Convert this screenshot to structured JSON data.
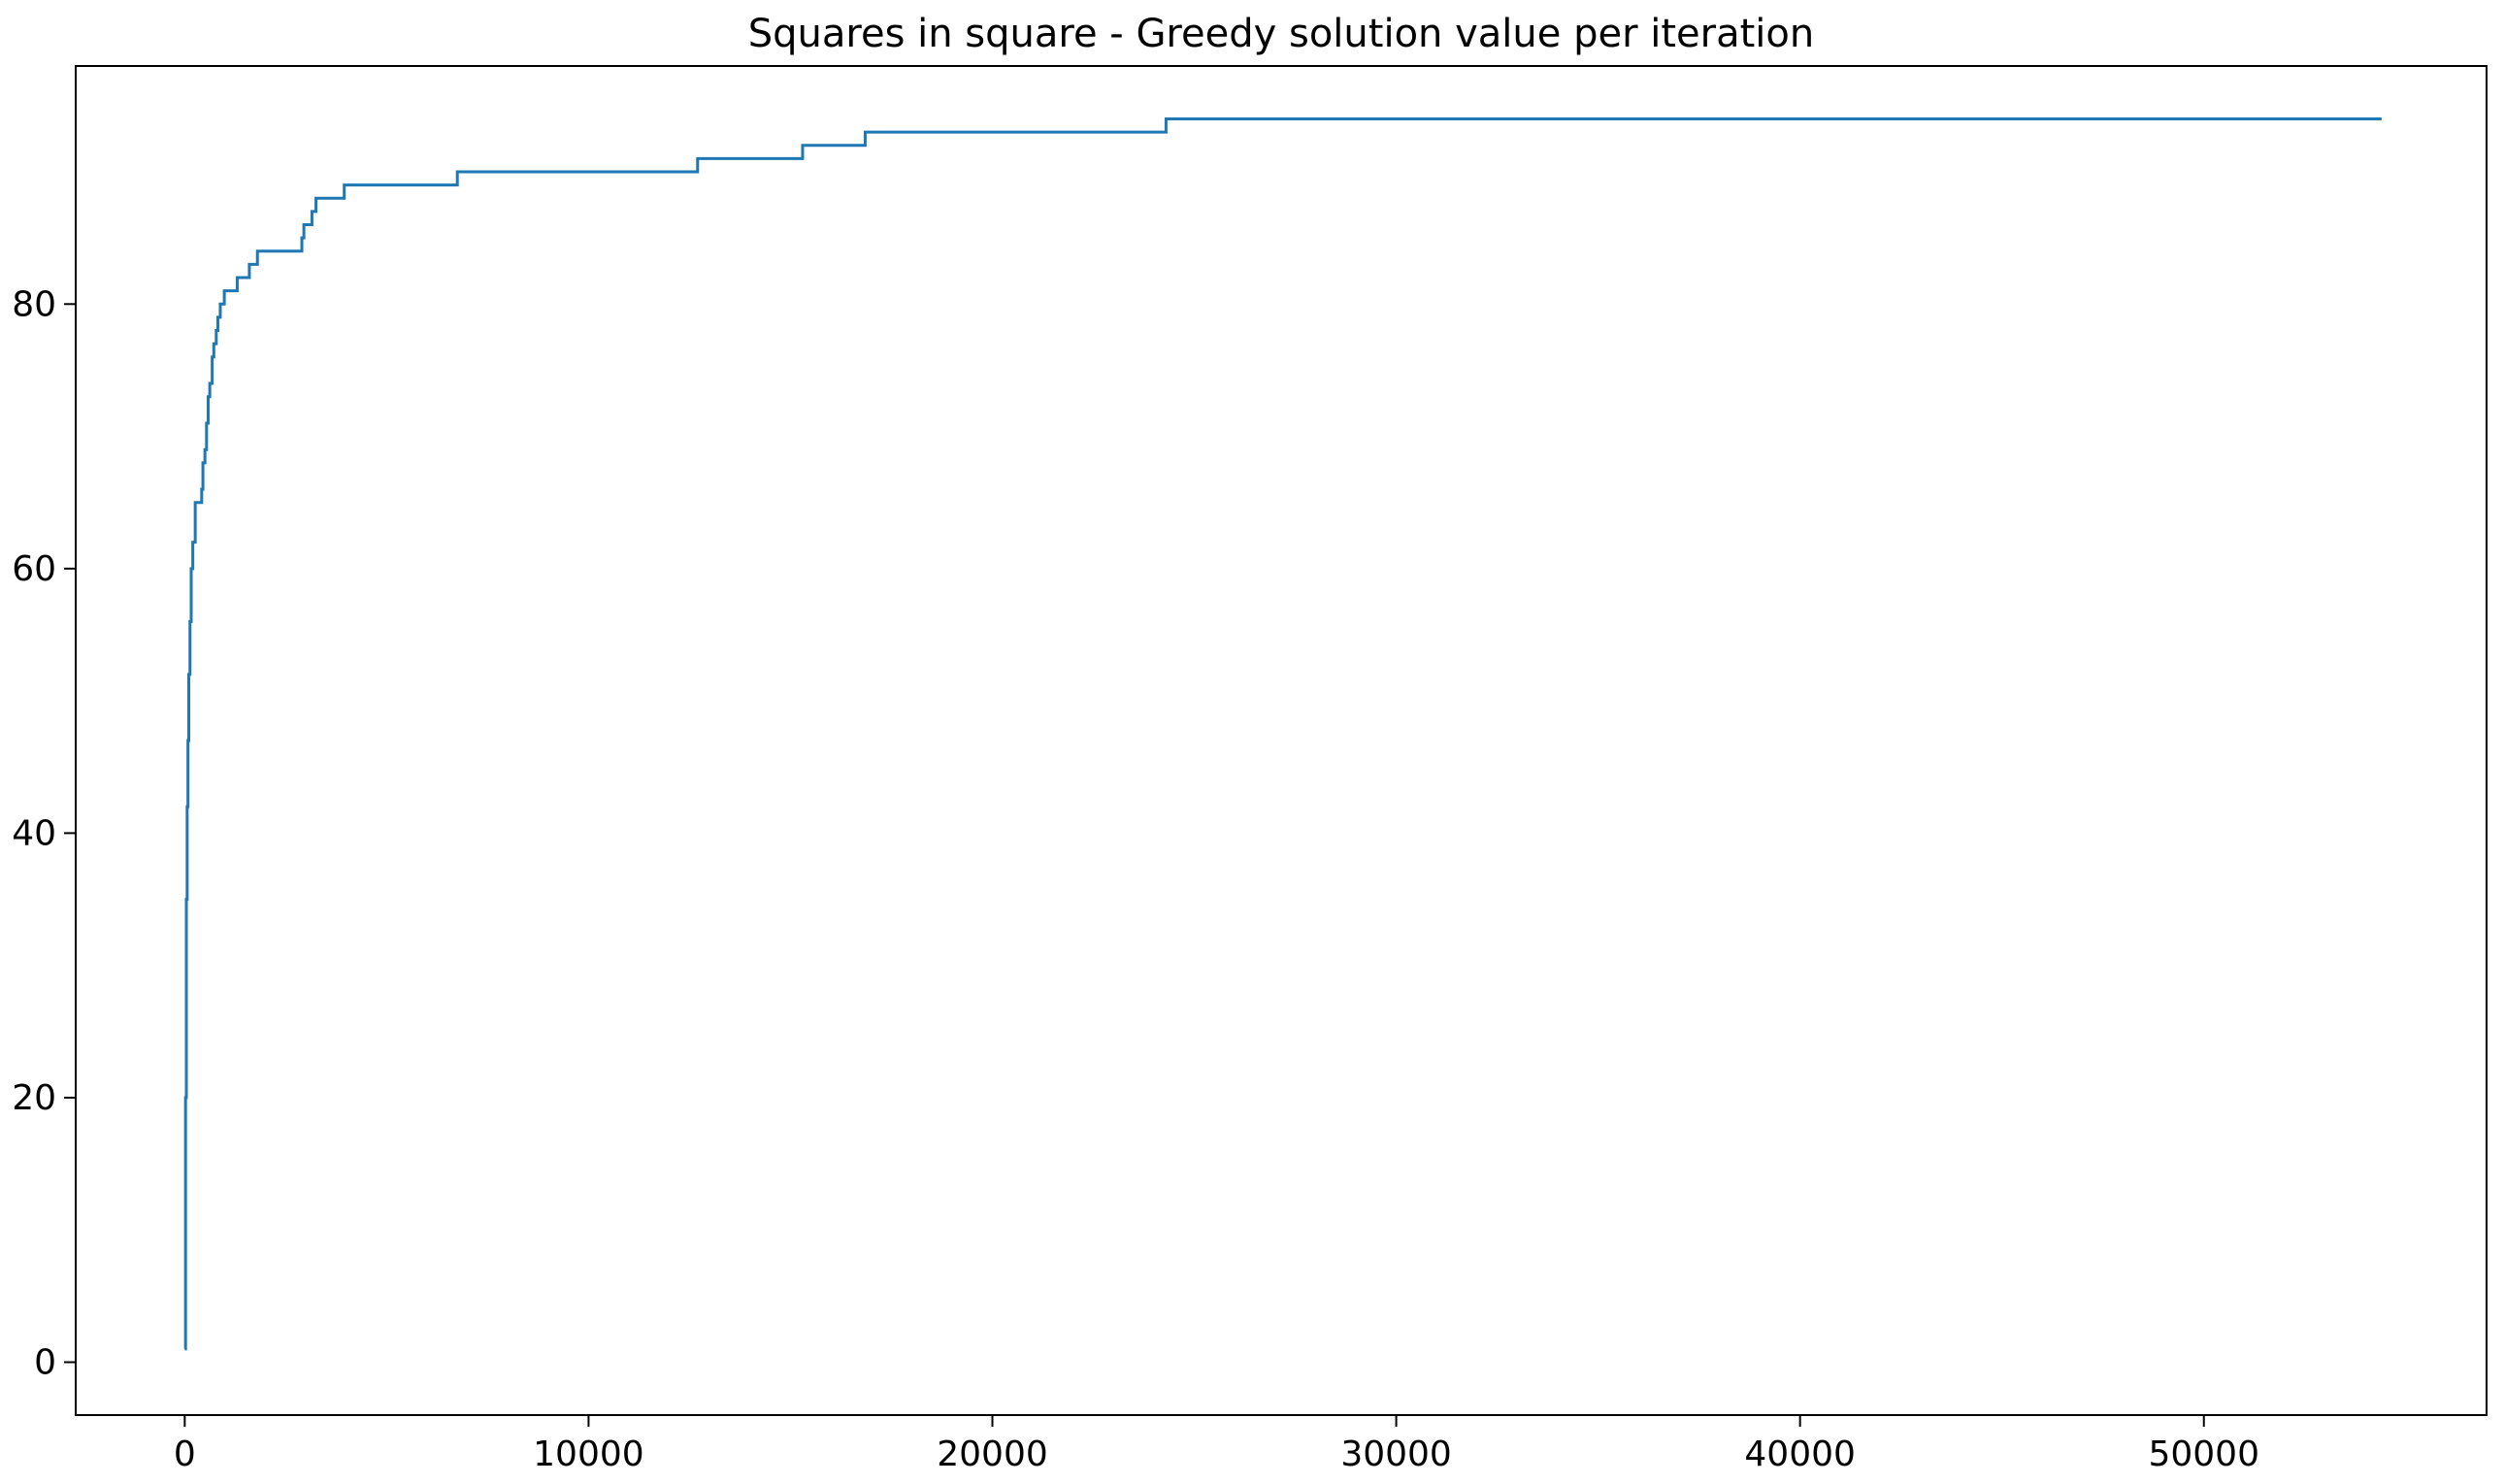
{
  "chart_data": {
    "type": "line",
    "title": "Squares in square - Greedy solution value per iteration",
    "xlabel": "",
    "ylabel": "",
    "xlim": [
      -2700,
      57000
    ],
    "ylim": [
      -4,
      98
    ],
    "grid": false,
    "legend": "none",
    "xticks": [
      0,
      10000,
      20000,
      30000,
      40000,
      50000
    ],
    "xtick_labels": [
      "0",
      "10000",
      "20000",
      "30000",
      "40000",
      "50000"
    ],
    "yticks": [
      0,
      20,
      40,
      60,
      80
    ],
    "ytick_labels": [
      "0",
      "20",
      "40",
      "60",
      "80"
    ],
    "line_color": "#1f77b4",
    "series": [
      {
        "step": "post",
        "x": [
          0,
          20,
          40,
          60,
          80,
          100,
          130,
          160,
          200,
          260,
          300,
          420,
          450,
          500,
          540,
          580,
          620,
          680,
          720,
          780,
          820,
          880,
          920,
          980,
          1050,
          1300,
          1600,
          1800,
          2900,
          2950,
          3150,
          3250,
          3950,
          6750,
          12700,
          15300,
          16850,
          24300,
          54400
        ],
        "y": [
          1,
          20,
          35,
          42,
          47,
          52,
          56,
          60,
          62,
          65,
          65,
          66,
          68,
          69,
          71,
          73,
          74,
          76,
          77,
          78,
          79,
          80,
          80,
          81,
          81,
          82,
          83,
          84,
          85,
          86,
          87,
          88,
          89,
          90,
          91,
          92,
          93,
          94,
          94
        ]
      }
    ]
  }
}
